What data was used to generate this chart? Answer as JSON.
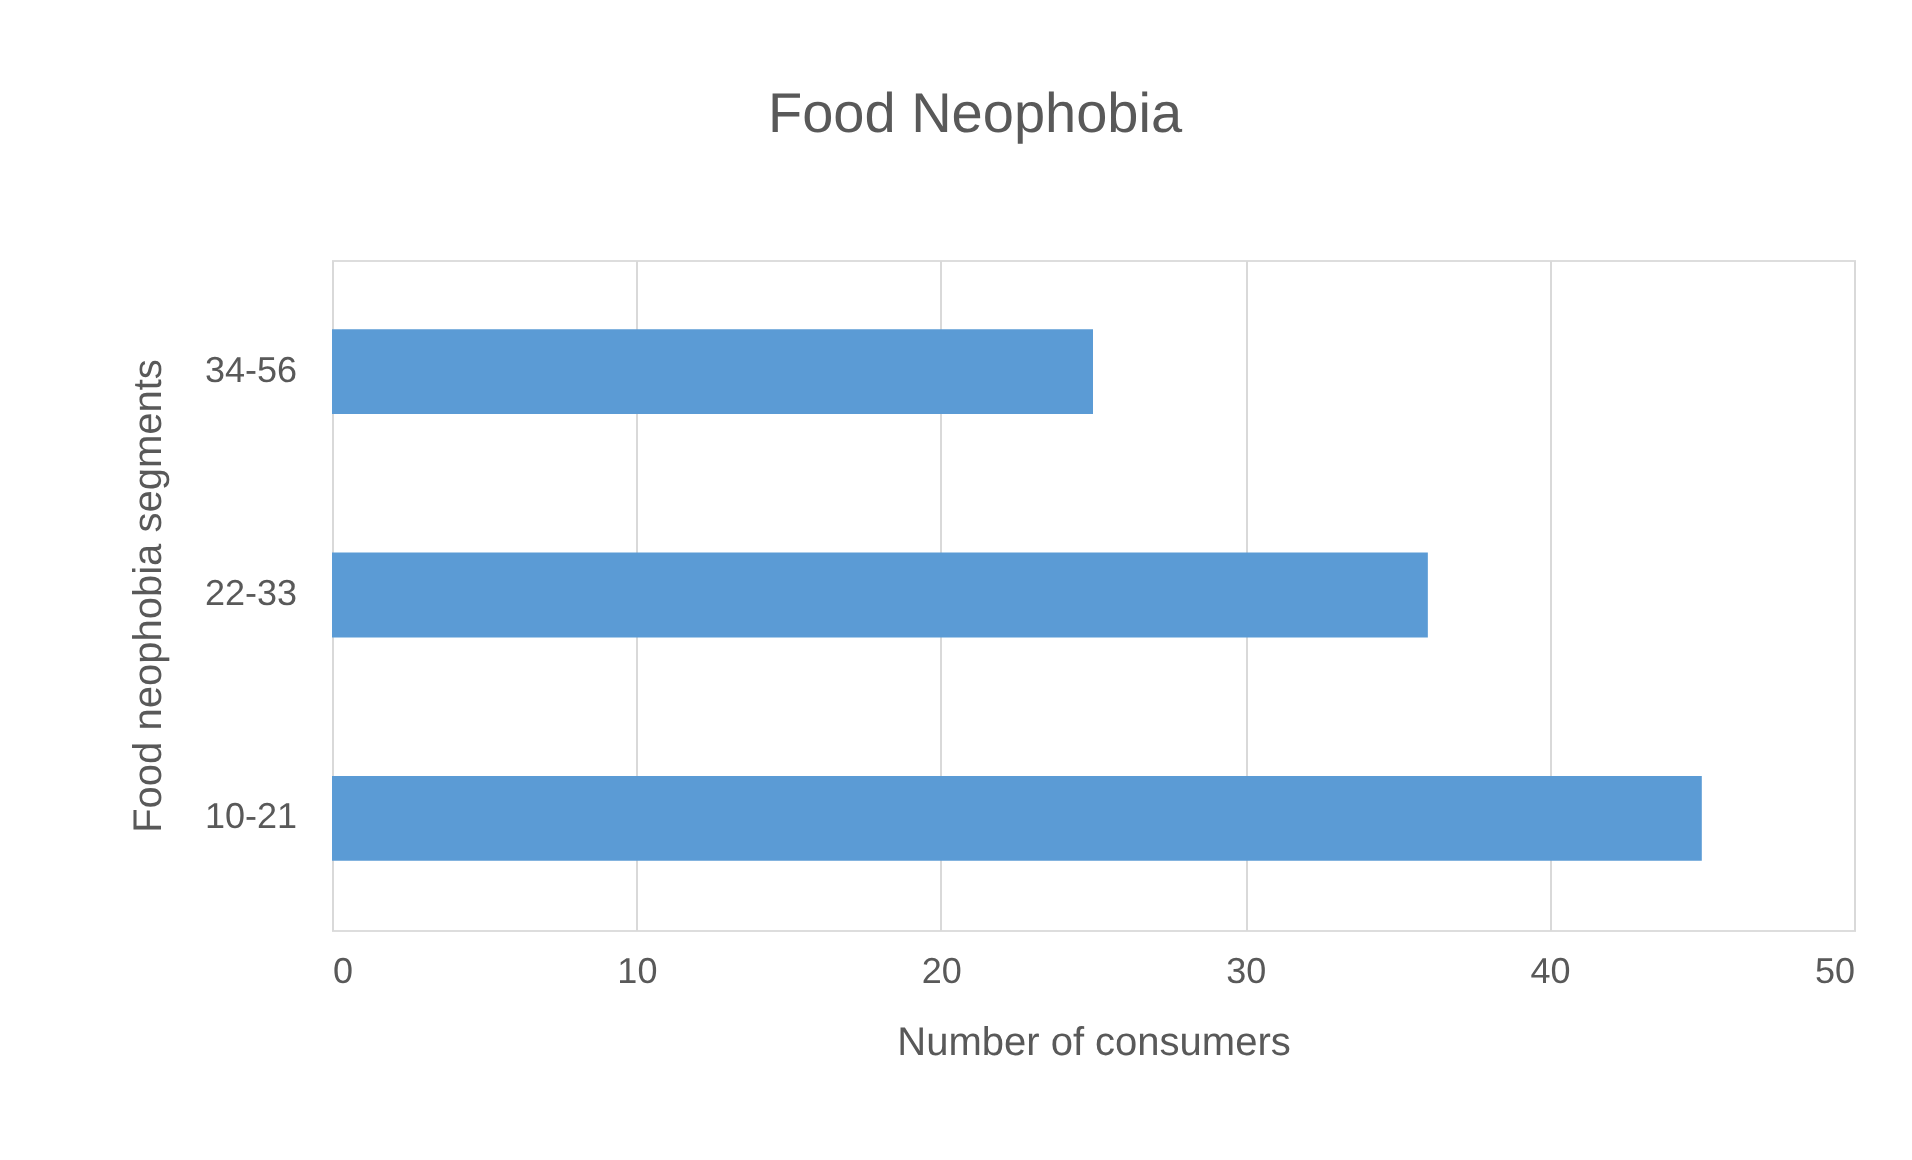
{
  "chart_data": {
    "type": "bar",
    "orientation": "horizontal",
    "title": "Food Neophobia",
    "xlabel": "Number of consumers",
    "ylabel": "Food neophobia segments",
    "categories": [
      "34-56",
      "22-33",
      "10-21"
    ],
    "series": [
      {
        "color": "#5b9bd5",
        "values": [
          25,
          36,
          45
        ]
      }
    ],
    "xlim": [
      0,
      50
    ],
    "xticks": [
      0,
      10,
      20,
      30,
      40,
      50
    ],
    "grid": "x",
    "legend": false
  }
}
